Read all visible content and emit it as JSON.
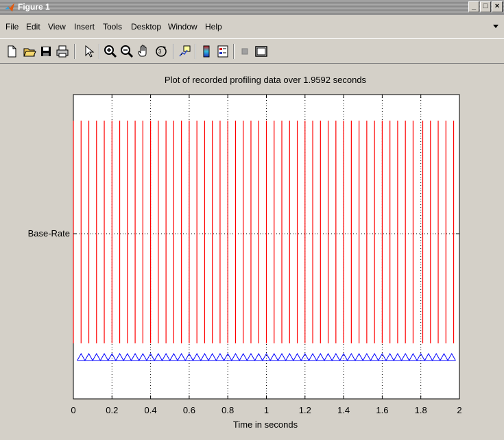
{
  "window": {
    "title": "Figure 1"
  },
  "menubar": {
    "items": [
      "File",
      "Edit",
      "View",
      "Insert",
      "Tools",
      "Desktop",
      "Window",
      "Help"
    ]
  },
  "toolbar": {
    "buttons": [
      "new-figure-icon",
      "open-file-icon",
      "save-icon",
      "print-icon",
      "edit-plot-arrow-icon",
      "zoom-in-icon",
      "zoom-out-icon",
      "pan-hand-icon",
      "rotate-3d-icon",
      "data-cursor-icon",
      "insert-colorbar-icon",
      "insert-legend-icon",
      "hide-plot-tools-icon",
      "show-plot-tools-icon"
    ]
  },
  "chart_data": {
    "type": "line",
    "title": "Plot of recorded profiling data over 1.9592 seconds",
    "xlabel": "Time in seconds",
    "ylabel": "",
    "xlim": [
      0,
      2
    ],
    "xticks": [
      "0",
      "0.2",
      "0.4",
      "0.6",
      "0.8",
      "1",
      "1.2",
      "1.4",
      "1.6",
      "1.8",
      "2"
    ],
    "yticks": [
      "Base-Rate"
    ],
    "grid": true,
    "series": [
      {
        "color": "#ff0000",
        "style": "vertical-impulses",
        "x": [
          0.0,
          0.04,
          0.08,
          0.12,
          0.16,
          0.2,
          0.24,
          0.28,
          0.32,
          0.36,
          0.4,
          0.44,
          0.48,
          0.52,
          0.56,
          0.6,
          0.64,
          0.68,
          0.72,
          0.76,
          0.8,
          0.84,
          0.88,
          0.92,
          0.96,
          1.0,
          1.04,
          1.08,
          1.12,
          1.16,
          1.2,
          1.24,
          1.28,
          1.32,
          1.36,
          1.4,
          1.44,
          1.48,
          1.52,
          1.56,
          1.6,
          1.64,
          1.68,
          1.72,
          1.76,
          1.81,
          1.85,
          1.89,
          1.93,
          1.97
        ]
      },
      {
        "color": "#0000ff",
        "style": "triangle-wave",
        "x_range": [
          0.02,
          1.98
        ],
        "cycles": 49
      }
    ]
  }
}
